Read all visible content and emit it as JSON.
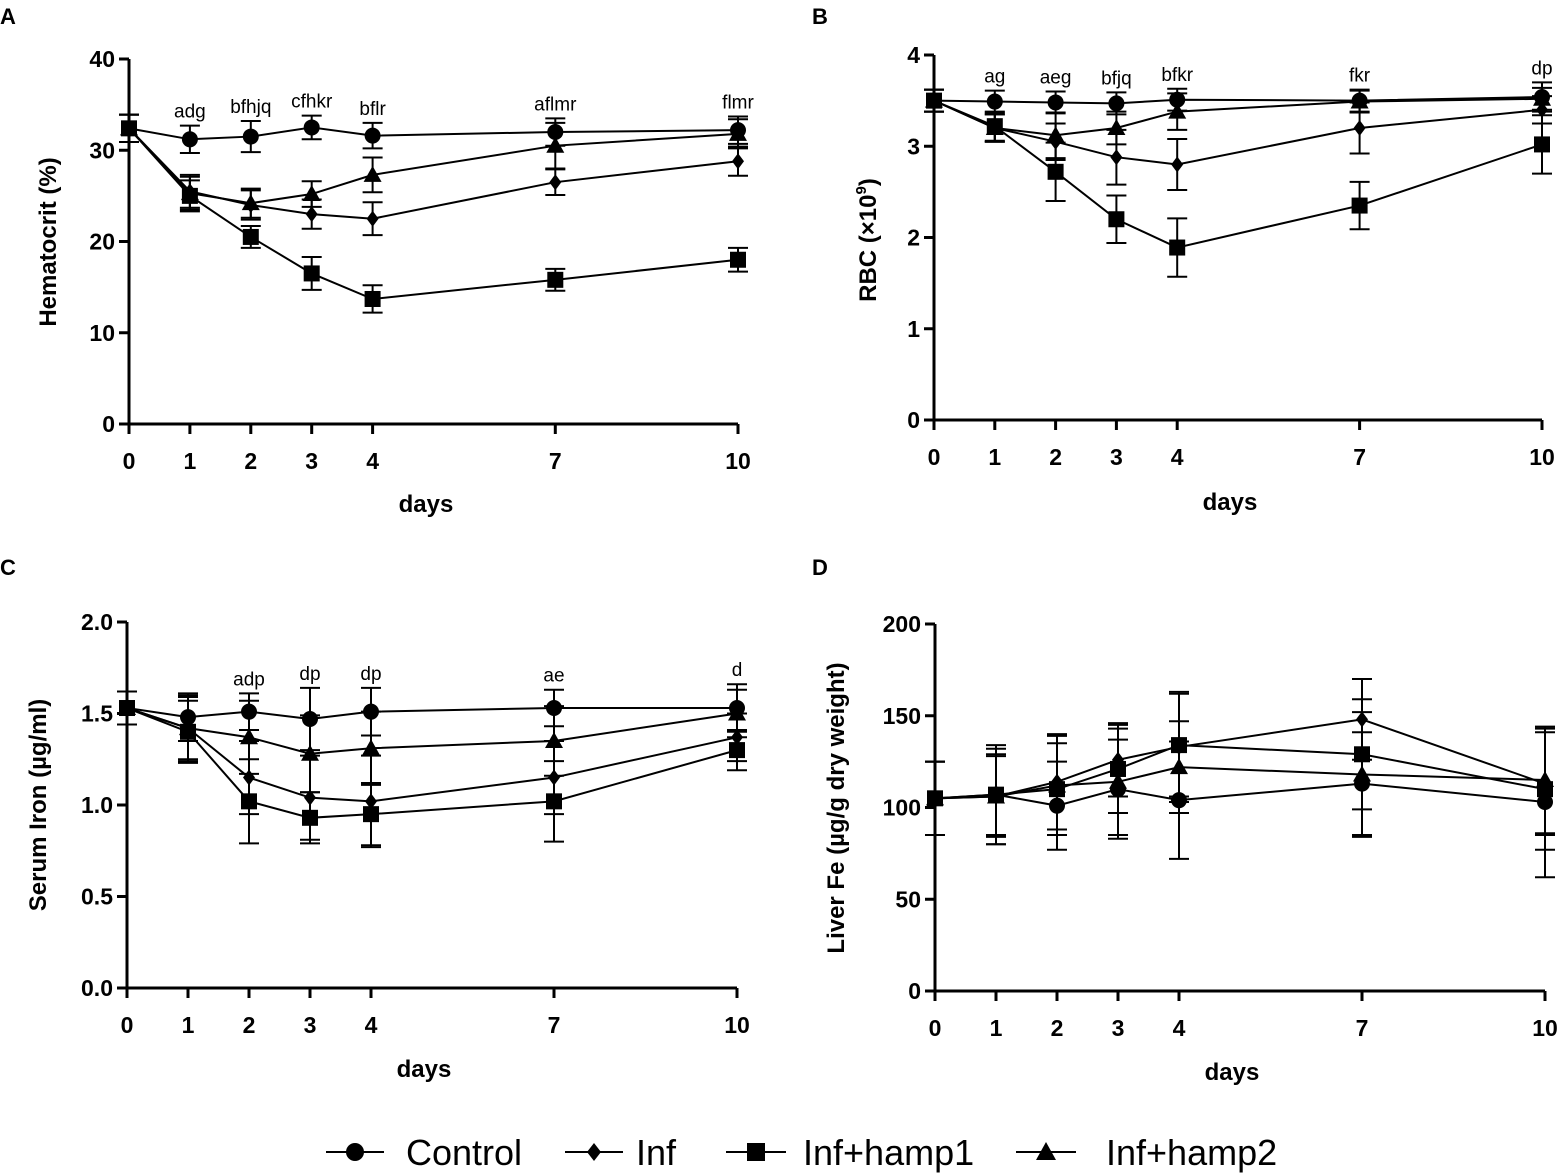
{
  "figure": {
    "x_label": "days",
    "x_ticks": [
      0,
      1,
      2,
      3,
      4,
      7,
      10
    ],
    "colors": {
      "ink": "#000000",
      "background": "#ffffff"
    }
  },
  "legend": {
    "items": [
      {
        "label": "Control",
        "marker": "circle"
      },
      {
        "label": "Inf",
        "marker": "diamond"
      },
      {
        "label": "Inf+hamp1",
        "marker": "square"
      },
      {
        "label": "Inf+hamp2",
        "marker": "triangle"
      }
    ]
  },
  "chart_data": [
    {
      "panel": "A",
      "type": "line",
      "ylabel": "Hematocrit (%)",
      "xlabel": "days",
      "ylim": [
        0,
        40
      ],
      "yticks": [
        0,
        10,
        20,
        30,
        40
      ],
      "ytick_labels": [
        "0",
        "10",
        "20",
        "30",
        "40"
      ],
      "x": [
        0,
        1,
        2,
        3,
        4,
        7,
        10
      ],
      "series": [
        {
          "name": "Control",
          "marker": "circle",
          "values": [
            32.4,
            31.2,
            31.5,
            32.5,
            31.6,
            32.0,
            32.2
          ],
          "errors": [
            1.5,
            1.5,
            1.7,
            1.3,
            1.4,
            1.5,
            1.5
          ]
        },
        {
          "name": "Inf",
          "marker": "diamond",
          "values": [
            32.4,
            25.5,
            24.0,
            23.0,
            22.5,
            26.5,
            28.8
          ],
          "errors": [
            1.5,
            1.8,
            1.6,
            1.6,
            1.8,
            1.4,
            1.6
          ]
        },
        {
          "name": "Inf+hamp1",
          "marker": "square",
          "values": [
            32.4,
            25.0,
            20.5,
            16.5,
            13.7,
            15.8,
            18.0
          ],
          "errors": [
            1.5,
            1.7,
            1.2,
            1.8,
            1.5,
            1.2,
            1.3
          ]
        },
        {
          "name": "Inf+hamp2",
          "marker": "triangle",
          "values": [
            32.4,
            25.3,
            24.2,
            25.2,
            27.3,
            30.5,
            31.8
          ],
          "errors": [
            1.5,
            1.8,
            1.6,
            1.4,
            1.9,
            2.5,
            1.6
          ]
        }
      ],
      "annotations": [
        {
          "x": 1,
          "text": "adg"
        },
        {
          "x": 2,
          "text": "bfhjq"
        },
        {
          "x": 3,
          "text": "cfhkr"
        },
        {
          "x": 4,
          "text": "bflr"
        },
        {
          "x": 7,
          "text": "aflmr"
        },
        {
          "x": 10,
          "text": "flmr"
        }
      ]
    },
    {
      "panel": "B",
      "type": "line",
      "ylabel": "RBC (×10",
      "ylabel_exponent": "9",
      "ylabel_suffix": ")",
      "xlabel": "days",
      "ylim": [
        0,
        4
      ],
      "yticks": [
        0,
        1,
        2,
        3,
        4
      ],
      "ytick_labels": [
        "0",
        "1",
        "2",
        "3",
        "4"
      ],
      "x": [
        0,
        1,
        2,
        3,
        4,
        7,
        10
      ],
      "series": [
        {
          "name": "Control",
          "marker": "circle",
          "values": [
            3.5,
            3.49,
            3.48,
            3.47,
            3.51,
            3.5,
            3.54
          ],
          "errors": [
            0.12,
            0.12,
            0.12,
            0.12,
            0.12,
            0.12,
            0.16
          ]
        },
        {
          "name": "Inf",
          "marker": "diamond",
          "values": [
            3.5,
            3.2,
            3.05,
            2.88,
            2.8,
            3.2,
            3.4
          ],
          "errors": [
            0.12,
            0.15,
            0.2,
            0.3,
            0.28,
            0.28,
            0.15
          ]
        },
        {
          "name": "Inf+hamp1",
          "marker": "square",
          "values": [
            3.5,
            3.22,
            2.72,
            2.2,
            1.89,
            2.35,
            3.02
          ],
          "errors": [
            0.12,
            0.16,
            0.32,
            0.26,
            0.32,
            0.26,
            0.32
          ]
        },
        {
          "name": "Inf+hamp2",
          "marker": "triangle",
          "values": [
            3.5,
            3.2,
            3.12,
            3.2,
            3.38,
            3.49,
            3.52
          ],
          "errors": [
            0.12,
            0.15,
            0.25,
            0.18,
            0.2,
            0.12,
            0.12
          ]
        }
      ],
      "annotations": [
        {
          "x": 1,
          "text": "ag"
        },
        {
          "x": 2,
          "text": "aeg"
        },
        {
          "x": 3,
          "text": "bfjq"
        },
        {
          "x": 4,
          "text": "bfkr"
        },
        {
          "x": 7,
          "text": "fkr"
        },
        {
          "x": 10,
          "text": "dp"
        }
      ]
    },
    {
      "panel": "C",
      "type": "line",
      "ylabel": "Serum Iron (µg/ml)",
      "xlabel": "days",
      "ylim": [
        0,
        2
      ],
      "yticks": [
        0,
        0.5,
        1,
        1.5,
        2
      ],
      "ytick_labels": [
        "0.0",
        "0.5",
        "1.0",
        "1.5",
        "2.0"
      ],
      "x": [
        0,
        1,
        2,
        3,
        4,
        7,
        10
      ],
      "series": [
        {
          "name": "Control",
          "marker": "circle",
          "values": [
            1.53,
            1.48,
            1.51,
            1.47,
            1.51,
            1.53,
            1.53
          ],
          "errors": [
            0.09,
            0.13,
            0.1,
            0.17,
            0.13,
            0.1,
            0.13
          ]
        },
        {
          "name": "Inf",
          "marker": "diamond",
          "values": [
            1.53,
            1.42,
            1.15,
            1.04,
            1.02,
            1.15,
            1.37
          ],
          "errors": [
            0.09,
            0.18,
            0.2,
            0.23,
            0.25,
            0.2,
            0.13
          ]
        },
        {
          "name": "Inf+hamp1",
          "marker": "square",
          "values": [
            1.53,
            1.4,
            1.02,
            0.93,
            0.95,
            1.02,
            1.3
          ],
          "errors": [
            0.09,
            0.17,
            0.23,
            0.14,
            0.17,
            0.22,
            0.11
          ]
        },
        {
          "name": "Inf+hamp2",
          "marker": "triangle",
          "values": [
            1.53,
            1.42,
            1.37,
            1.28,
            1.31,
            1.35,
            1.5
          ],
          "errors": [
            0.09,
            0.17,
            0.2,
            0.21,
            0.2,
            0.19,
            0.13
          ]
        }
      ],
      "annotations": [
        {
          "x": 2,
          "text": "adp"
        },
        {
          "x": 3,
          "text": "dp"
        },
        {
          "x": 4,
          "text": "dp"
        },
        {
          "x": 7,
          "text": "ae"
        },
        {
          "x": 10,
          "text": "d"
        }
      ]
    },
    {
      "panel": "D",
      "type": "line",
      "ylabel": "Liver Fe (µg/g dry weight)",
      "xlabel": "days",
      "ylim": [
        0,
        200
      ],
      "yticks": [
        0,
        50,
        100,
        150,
        200
      ],
      "ytick_labels": [
        "0",
        "50",
        "100",
        "150",
        "200"
      ],
      "x": [
        0,
        1,
        2,
        3,
        4,
        7,
        10
      ],
      "series": [
        {
          "name": "Control",
          "marker": "circle",
          "values": [
            105,
            107,
            101,
            110,
            104,
            113,
            103
          ],
          "errors": [
            20,
            22,
            24,
            27,
            32,
            28,
            41
          ]
        },
        {
          "name": "Inf",
          "marker": "diamond",
          "values": [
            105,
            106,
            114,
            126,
            133,
            148,
            113
          ],
          "errors": [
            20,
            26,
            26,
            20,
            30,
            22,
            28
          ]
        },
        {
          "name": "Inf+hamp1",
          "marker": "square",
          "values": [
            105,
            107,
            110,
            121,
            134,
            129,
            110
          ],
          "errors": [
            20,
            27,
            25,
            24,
            28,
            30,
            33
          ]
        },
        {
          "name": "Inf+hamp2",
          "marker": "triangle",
          "values": [
            105,
            106,
            112,
            114,
            122,
            118,
            115
          ],
          "errors": [
            20,
            22,
            27,
            29,
            25,
            34,
            29
          ]
        }
      ],
      "annotations": []
    }
  ]
}
